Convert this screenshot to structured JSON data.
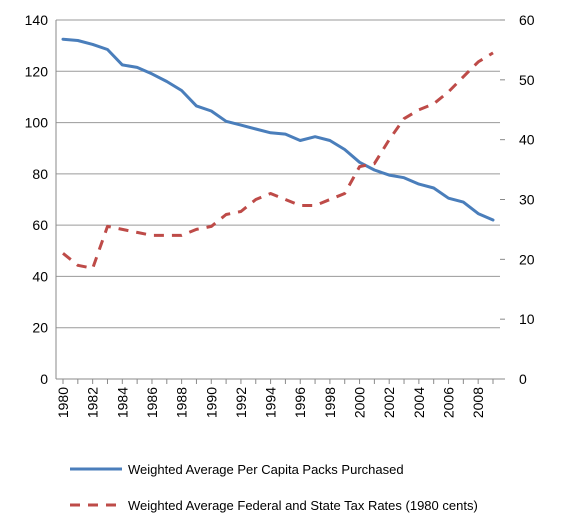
{
  "chart_data": {
    "type": "line",
    "x": [
      1980,
      1981,
      1982,
      1983,
      1984,
      1985,
      1986,
      1987,
      1988,
      1989,
      1990,
      1991,
      1992,
      1993,
      1994,
      1995,
      1996,
      1997,
      1998,
      1999,
      2000,
      2001,
      2002,
      2003,
      2004,
      2005,
      2006,
      2007,
      2008,
      2009
    ],
    "x_tick_labels": [
      "1980",
      "1982",
      "1984",
      "1986",
      "1988",
      "1990",
      "1992",
      "1994",
      "1996",
      "1998",
      "2000",
      "2002",
      "2004",
      "2006",
      "2008"
    ],
    "y_left_ticks": [
      "0",
      "20",
      "40",
      "60",
      "80",
      "100",
      "120",
      "140"
    ],
    "y_right_ticks": [
      "0",
      "10",
      "20",
      "30",
      "40",
      "50",
      "60"
    ],
    "ylim_left": [
      0,
      140
    ],
    "ylim_right": [
      0,
      60
    ],
    "grid": "horizontal",
    "legend_position": "bottom",
    "series": [
      {
        "name": "Weighted Average Per Capita Packs Purchased",
        "axis": "left",
        "color": "#4a7ebb",
        "style": "solid",
        "values": [
          132.5,
          132,
          130.5,
          128.5,
          122.5,
          121.5,
          119,
          116,
          112.5,
          106.5,
          104.5,
          100.5,
          99,
          97.5,
          96,
          95.5,
          93,
          94.5,
          93,
          89.5,
          84.5,
          81.5,
          79.5,
          78.5,
          76,
          74.5,
          70.5,
          69,
          64.5,
          62
        ]
      },
      {
        "name": "Weighted Average Federal and State Tax Rates (1980 cents)",
        "axis": "right",
        "color": "#be4b48",
        "style": "dashed",
        "values": [
          21,
          19,
          18.5,
          25.5,
          25,
          24.5,
          24,
          24,
          24,
          25,
          25.5,
          27.5,
          28,
          30,
          31,
          30,
          29,
          29,
          30,
          31,
          35.5,
          36,
          40,
          43.5,
          45,
          46,
          48,
          50.5,
          53,
          54.5
        ]
      }
    ]
  }
}
